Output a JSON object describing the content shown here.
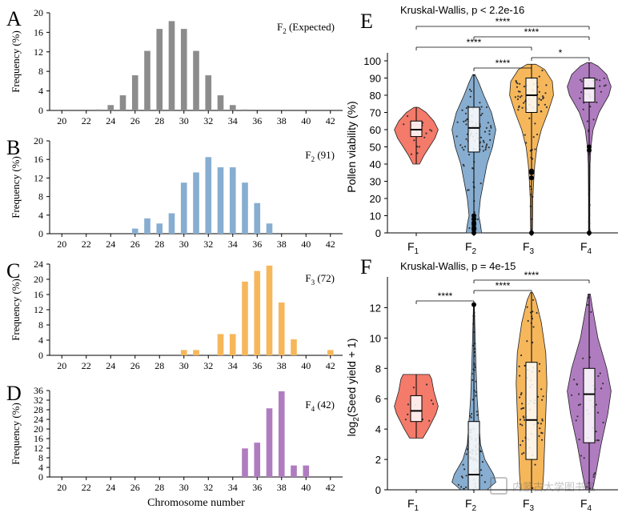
{
  "watermark_text": "内蒙古大学图书馆",
  "chart_data": [
    {
      "panel": "A",
      "type": "bar",
      "color": "#8c8c8c",
      "title": "F",
      "title_sub": "2",
      "title_rest": "(Expected)",
      "ylabel": "Frequency (%)",
      "xlabel": "",
      "ylim": [
        0,
        20
      ],
      "yticks": [
        0,
        4,
        8,
        12,
        16,
        20
      ],
      "xlim": [
        19,
        43
      ],
      "xticks": [
        20,
        22,
        24,
        26,
        28,
        30,
        32,
        34,
        36,
        38,
        40,
        42
      ],
      "x": [
        23,
        24,
        25,
        26,
        27,
        28,
        29,
        30,
        31,
        32,
        33,
        34,
        35
      ],
      "values": [
        0.2,
        1.1,
        3.1,
        7.2,
        12.2,
        16.7,
        18.3,
        16.7,
        12.2,
        7.2,
        3.1,
        1.1,
        0.2
      ]
    },
    {
      "panel": "B",
      "type": "bar",
      "color": "#87aed1",
      "title": "F",
      "title_sub": "2",
      "title_rest": "(91)",
      "ylabel": "Frequency (%)",
      "xlabel": "",
      "ylim": [
        0,
        20
      ],
      "yticks": [
        0,
        4,
        8,
        12,
        16,
        20
      ],
      "xlim": [
        19,
        43
      ],
      "xticks": [
        20,
        22,
        24,
        26,
        28,
        30,
        32,
        34,
        36,
        38,
        40,
        42
      ],
      "x": [
        26,
        27,
        28,
        29,
        30,
        31,
        32,
        33,
        34,
        35,
        36,
        37
      ],
      "values": [
        1.1,
        3.3,
        2.2,
        4.4,
        11.0,
        13.2,
        16.5,
        14.3,
        14.3,
        11.0,
        6.6,
        2.2
      ]
    },
    {
      "panel": "C",
      "type": "bar",
      "color": "#f6b75b",
      "title": "F",
      "title_sub": "3",
      "title_rest": "(72)",
      "ylabel": "Frequency (%)",
      "xlabel": "",
      "ylim": [
        0,
        24
      ],
      "yticks": [
        0,
        4,
        8,
        12,
        16,
        20,
        24
      ],
      "xlim": [
        19,
        43
      ],
      "xticks": [
        20,
        22,
        24,
        26,
        28,
        30,
        32,
        34,
        36,
        38,
        40,
        42
      ],
      "x": [
        30,
        31,
        33,
        34,
        35,
        36,
        37,
        38,
        39,
        42
      ],
      "values": [
        1.4,
        1.4,
        5.6,
        5.6,
        19.4,
        22.2,
        23.6,
        13.9,
        4.2,
        1.4
      ]
    },
    {
      "panel": "D",
      "type": "bar",
      "color": "#b07cc0",
      "title": "F",
      "title_sub": "4",
      "title_rest": "(42)",
      "ylabel": "Frequency (%)",
      "xlabel": "Chromosome number",
      "ylim": [
        0,
        36
      ],
      "yticks": [
        0,
        4,
        8,
        12,
        16,
        20,
        24,
        28,
        32,
        36
      ],
      "xlim": [
        19,
        43
      ],
      "xticks": [
        20,
        22,
        24,
        26,
        28,
        30,
        32,
        34,
        36,
        38,
        40,
        42
      ],
      "x": [
        35,
        36,
        37,
        38,
        39,
        40
      ],
      "values": [
        11.9,
        14.3,
        28.6,
        35.7,
        4.8,
        4.8
      ]
    },
    {
      "panel": "E",
      "type": "violin",
      "title": "Kruskal-Wallis, p < 2.2e-16",
      "ylabel": "Pollen viability (%)",
      "ylim": [
        0,
        100
      ],
      "yticks": [
        0,
        10,
        20,
        30,
        40,
        50,
        60,
        70,
        80,
        90,
        100
      ],
      "groups": [
        {
          "label": "F",
          "sub": "1",
          "color": "#f47a6a",
          "min": 40,
          "q1": 56,
          "median": 60,
          "q3": 65,
          "max": 73,
          "density": [
            [
              40,
              0.15
            ],
            [
              45,
              0.35
            ],
            [
              50,
              0.6
            ],
            [
              55,
              0.85
            ],
            [
              60,
              1.0
            ],
            [
              65,
              0.8
            ],
            [
              70,
              0.45
            ],
            [
              73,
              0.1
            ]
          ],
          "n": 16
        },
        {
          "label": "F",
          "sub": "2",
          "color": "#87aed1",
          "min": 0,
          "q1": 47,
          "median": 61,
          "q3": 73,
          "max": 92,
          "density": [
            [
              0,
              0.35
            ],
            [
              5,
              0.3
            ],
            [
              10,
              0.22
            ],
            [
              20,
              0.3
            ],
            [
              30,
              0.45
            ],
            [
              40,
              0.6
            ],
            [
              50,
              0.85
            ],
            [
              60,
              1.0
            ],
            [
              70,
              0.8
            ],
            [
              80,
              0.45
            ],
            [
              88,
              0.2
            ],
            [
              92,
              0.05
            ]
          ],
          "n": 91
        },
        {
          "label": "F",
          "sub": "3",
          "color": "#f6b75b",
          "min": 0,
          "q1": 70,
          "median": 80,
          "q3": 90,
          "max": 98,
          "density": [
            [
              0,
              0.04
            ],
            [
              10,
              0.05
            ],
            [
              20,
              0.06
            ],
            [
              30,
              0.1
            ],
            [
              40,
              0.15
            ],
            [
              50,
              0.25
            ],
            [
              60,
              0.45
            ],
            [
              70,
              0.75
            ],
            [
              80,
              1.0
            ],
            [
              88,
              0.95
            ],
            [
              95,
              0.6
            ],
            [
              98,
              0.2
            ]
          ],
          "n": 72
        },
        {
          "label": "F",
          "sub": "4",
          "color": "#b07cc0",
          "min": 0,
          "q1": 76,
          "median": 84,
          "q3": 90,
          "max": 99,
          "density": [
            [
              0,
              0.03
            ],
            [
              20,
              0.03
            ],
            [
              40,
              0.04
            ],
            [
              50,
              0.08
            ],
            [
              60,
              0.18
            ],
            [
              70,
              0.45
            ],
            [
              80,
              0.9
            ],
            [
              85,
              1.0
            ],
            [
              92,
              0.8
            ],
            [
              97,
              0.4
            ],
            [
              99,
              0.1
            ]
          ],
          "n": 42
        }
      ],
      "outliers": [
        {
          "group": 1,
          "values": [
            0,
            2,
            3,
            5,
            6,
            8,
            10
          ]
        },
        {
          "group": 2,
          "values": [
            0,
            32,
            35,
            36
          ]
        },
        {
          "group": 3,
          "values": [
            0,
            48,
            50
          ]
        }
      ],
      "brackets": [
        {
          "from": 0,
          "to": 3,
          "label": "****"
        },
        {
          "from": 1,
          "to": 3,
          "label": "****"
        },
        {
          "from": 0,
          "to": 2,
          "label": "****"
        },
        {
          "from": 2,
          "to": 3,
          "label": "*"
        },
        {
          "from": 1,
          "to": 2,
          "label": "****"
        }
      ]
    },
    {
      "panel": "F",
      "type": "violin",
      "title": "Kruskal-Wallis, p = 4e-15",
      "ylabel": "log",
      "ylabel_sub": "2",
      "ylabel_rest": "(Seed yield + 1)",
      "ylim": [
        0,
        13.5
      ],
      "yticks": [
        0,
        2,
        4,
        6,
        8,
        10,
        12
      ],
      "groups": [
        {
          "label": "F",
          "sub": "1",
          "color": "#f47a6a",
          "min": 3.4,
          "q1": 4.5,
          "median": 5.2,
          "q3": 6.2,
          "max": 7.6,
          "density": [
            [
              3.4,
              0.3
            ],
            [
              4,
              0.55
            ],
            [
              5,
              0.9
            ],
            [
              5.5,
              1.0
            ],
            [
              6.5,
              0.8
            ],
            [
              7.3,
              0.7
            ],
            [
              7.6,
              0.6
            ]
          ],
          "n": 10
        },
        {
          "label": "F",
          "sub": "2",
          "color": "#87aed1",
          "min": 0,
          "q1": 0,
          "median": 1.0,
          "q3": 4.5,
          "max": 12.2,
          "density": [
            [
              0,
              0.6
            ],
            [
              0.5,
              1.0
            ],
            [
              1,
              0.9
            ],
            [
              2,
              0.5
            ],
            [
              3,
              0.3
            ],
            [
              4,
              0.25
            ],
            [
              6,
              0.15
            ],
            [
              8,
              0.1
            ],
            [
              10,
              0.06
            ],
            [
              12.2,
              0.02
            ]
          ],
          "n": 91
        },
        {
          "label": "F",
          "sub": "3",
          "color": "#f6b75b",
          "min": 0,
          "q1": 2.0,
          "median": 4.6,
          "q3": 8.4,
          "max": 13.0,
          "density": [
            [
              0,
              0.5
            ],
            [
              1,
              0.55
            ],
            [
              3,
              0.6
            ],
            [
              5,
              0.65
            ],
            [
              7,
              0.7
            ],
            [
              9,
              0.65
            ],
            [
              11,
              0.45
            ],
            [
              12.5,
              0.2
            ],
            [
              13,
              0.05
            ]
          ],
          "n": 72
        },
        {
          "label": "F",
          "sub": "4",
          "color": "#b07cc0",
          "min": 0,
          "q1": 3.1,
          "median": 6.3,
          "q3": 8.0,
          "max": 12.9,
          "density": [
            [
              0,
              0.15
            ],
            [
              1,
              0.3
            ],
            [
              3,
              0.55
            ],
            [
              5,
              0.85
            ],
            [
              6.5,
              1.0
            ],
            [
              8,
              0.8
            ],
            [
              10,
              0.4
            ],
            [
              12,
              0.15
            ],
            [
              12.9,
              0.05
            ]
          ],
          "n": 42
        }
      ],
      "outliers": [
        {
          "group": 1,
          "values": [
            12.2
          ]
        }
      ],
      "brackets": [
        {
          "from": 1,
          "to": 3,
          "label": "****"
        },
        {
          "from": 1,
          "to": 2,
          "label": "****"
        },
        {
          "from": 0,
          "to": 1,
          "label": "****"
        }
      ]
    }
  ]
}
